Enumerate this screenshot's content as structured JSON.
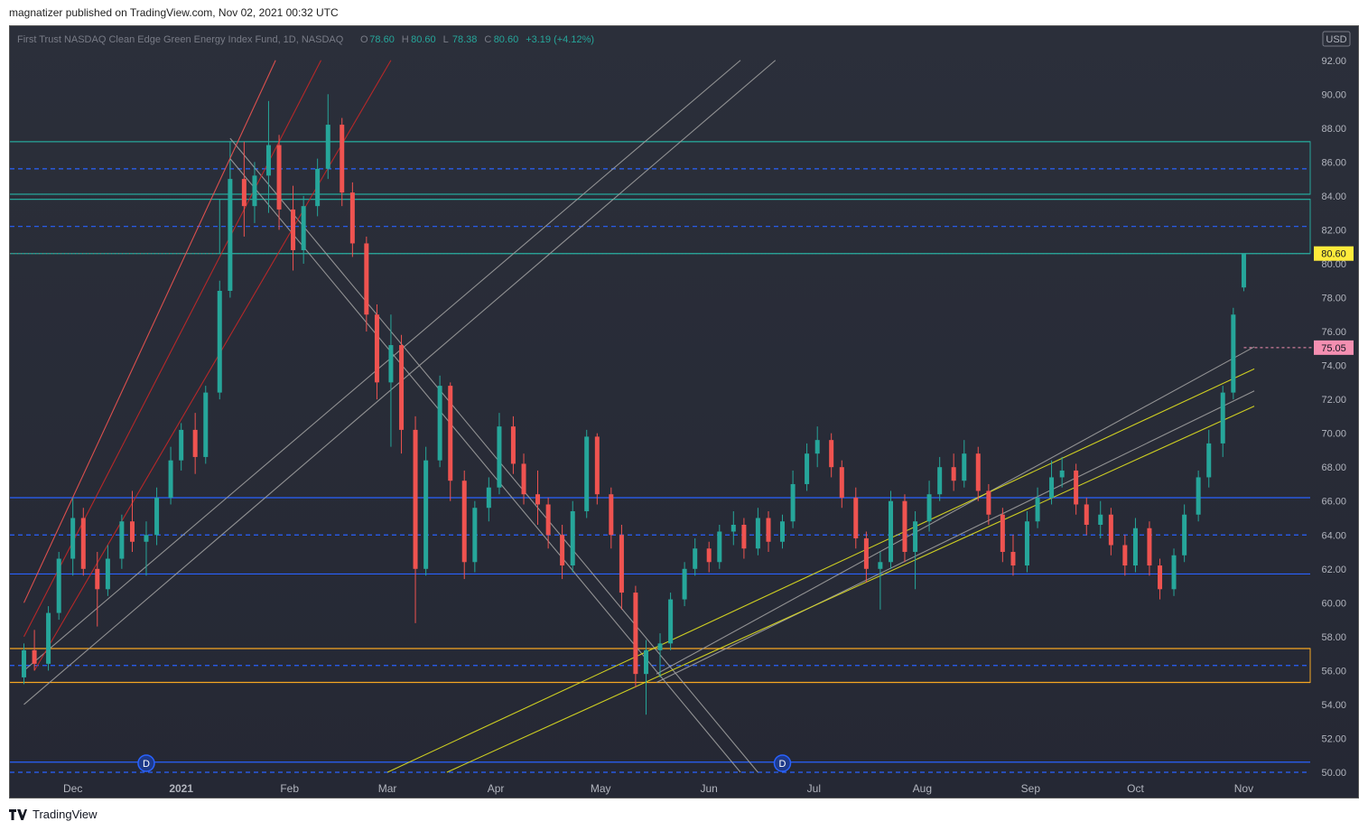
{
  "header": {
    "publisher": "magnatizer",
    "published_text": "magnatizer published on TradingView.com, Nov 02, 2021 00:32 UTC"
  },
  "footer": {
    "brand": "TradingView",
    "logo_icon": "tradingview-logo-icon"
  },
  "chart_data": {
    "type": "candlestick",
    "symbol_title": "First Trust NASDAQ Clean Edge Green Energy Index Fund, 1D, NASDAQ",
    "ohlc": {
      "open_prefix": "O",
      "open": "78.60",
      "high_prefix": "H",
      "high": "80.60",
      "low_prefix": "L",
      "low": "78.38",
      "close_prefix": "C",
      "close": "80.60",
      "change": "+3.19 (+4.12%)"
    },
    "currency": "USD",
    "y_axis": {
      "min": 50,
      "max": 93,
      "ticks": [
        "50.00",
        "52.00",
        "54.00",
        "56.00",
        "58.00",
        "60.00",
        "62.00",
        "64.00",
        "66.00",
        "68.00",
        "70.00",
        "72.00",
        "74.00",
        "76.00",
        "78.00",
        "80.00",
        "82.00",
        "84.00",
        "86.00",
        "88.00",
        "90.00",
        "92.00"
      ]
    },
    "x_axis": {
      "labels": [
        {
          "label": "Dec",
          "date": "2020-12-01"
        },
        {
          "label": "2021",
          "date": "2021-01-01"
        },
        {
          "label": "Feb",
          "date": "2021-02-01"
        },
        {
          "label": "Mar",
          "date": "2021-03-01"
        },
        {
          "label": "Apr",
          "date": "2021-04-01"
        },
        {
          "label": "May",
          "date": "2021-05-01"
        },
        {
          "label": "Jun",
          "date": "2021-06-01"
        },
        {
          "label": "Jul",
          "date": "2021-07-01"
        },
        {
          "label": "Aug",
          "date": "2021-08-01"
        },
        {
          "label": "Sep",
          "date": "2021-09-01"
        },
        {
          "label": "Oct",
          "date": "2021-10-01"
        },
        {
          "label": "Nov",
          "date": "2021-11-01"
        }
      ]
    },
    "price_labels": {
      "last": "80.60",
      "marker": "75.05"
    },
    "dividend_markers": [
      {
        "label": "D",
        "date": "2020-12-22"
      },
      {
        "label": "D",
        "date": "2021-06-22"
      }
    ],
    "horizontal_levels": [
      {
        "price": 87.2,
        "style": "solid",
        "color": "#26a69a"
      },
      {
        "price": 85.6,
        "style": "dashed",
        "color": "#2962ff"
      },
      {
        "price": 84.1,
        "style": "solid",
        "color": "#26a69a"
      },
      {
        "price": 83.8,
        "style": "solid",
        "color": "#26a69a"
      },
      {
        "price": 82.2,
        "style": "dashed",
        "color": "#2962ff"
      },
      {
        "price": 80.6,
        "style": "solid",
        "color": "#26a69a"
      },
      {
        "price": 66.2,
        "style": "solid",
        "color": "#2962ff"
      },
      {
        "price": 64.0,
        "style": "dashed",
        "color": "#2962ff"
      },
      {
        "price": 61.7,
        "style": "solid",
        "color": "#2962ff"
      },
      {
        "price": 57.3,
        "style": "solid",
        "color": "#f5a623"
      },
      {
        "price": 56.3,
        "style": "dashed",
        "color": "#2962ff"
      },
      {
        "price": 55.3,
        "style": "solid",
        "color": "#f5a623"
      },
      {
        "price": 50.6,
        "style": "solid",
        "color": "#2962ff"
      },
      {
        "price": 50.0,
        "style": "dashed",
        "color": "#2962ff"
      }
    ],
    "candles": [
      {
        "d": "2020-11-17",
        "o": 55.6,
        "h": 57.6,
        "l": 55.2,
        "c": 57.2
      },
      {
        "d": "2020-11-20",
        "o": 57.2,
        "h": 58.4,
        "l": 56.0,
        "c": 56.4
      },
      {
        "d": "2020-11-24",
        "o": 56.4,
        "h": 59.8,
        "l": 56.0,
        "c": 59.4
      },
      {
        "d": "2020-11-27",
        "o": 59.4,
        "h": 63.0,
        "l": 59.0,
        "c": 62.6
      },
      {
        "d": "2020-12-01",
        "o": 62.6,
        "h": 66.2,
        "l": 61.6,
        "c": 65.0
      },
      {
        "d": "2020-12-04",
        "o": 65.0,
        "h": 65.6,
        "l": 61.6,
        "c": 62.0
      },
      {
        "d": "2020-12-08",
        "o": 62.0,
        "h": 63.0,
        "l": 58.6,
        "c": 60.8
      },
      {
        "d": "2020-12-11",
        "o": 60.8,
        "h": 63.4,
        "l": 60.4,
        "c": 62.6
      },
      {
        "d": "2020-12-15",
        "o": 62.6,
        "h": 65.2,
        "l": 62.0,
        "c": 64.8
      },
      {
        "d": "2020-12-18",
        "o": 64.8,
        "h": 66.6,
        "l": 63.0,
        "c": 63.6
      },
      {
        "d": "2020-12-22",
        "o": 63.6,
        "h": 64.8,
        "l": 61.6,
        "c": 64.0
      },
      {
        "d": "2020-12-25",
        "o": 64.0,
        "h": 66.8,
        "l": 63.4,
        "c": 66.2
      },
      {
        "d": "2020-12-29",
        "o": 66.2,
        "h": 69.2,
        "l": 65.8,
        "c": 68.4
      },
      {
        "d": "2021-01-01",
        "o": 68.4,
        "h": 70.6,
        "l": 67.8,
        "c": 70.2
      },
      {
        "d": "2021-01-05",
        "o": 70.2,
        "h": 71.2,
        "l": 67.6,
        "c": 68.6
      },
      {
        "d": "2021-01-08",
        "o": 68.6,
        "h": 72.8,
        "l": 68.2,
        "c": 72.4
      },
      {
        "d": "2021-01-12",
        "o": 72.4,
        "h": 79.0,
        "l": 72.0,
        "c": 78.4
      },
      {
        "d": "2021-01-15",
        "o": 78.4,
        "h": 86.0,
        "l": 78.0,
        "c": 85.0
      },
      {
        "d": "2021-01-19",
        "o": 85.0,
        "h": 87.2,
        "l": 81.6,
        "c": 83.4
      },
      {
        "d": "2021-01-22",
        "o": 83.4,
        "h": 86.0,
        "l": 82.4,
        "c": 85.2
      },
      {
        "d": "2021-01-26",
        "o": 85.2,
        "h": 89.6,
        "l": 83.0,
        "c": 87.0
      },
      {
        "d": "2021-01-29",
        "o": 87.0,
        "h": 87.6,
        "l": 82.0,
        "c": 83.2
      },
      {
        "d": "2021-02-02",
        "o": 83.2,
        "h": 84.6,
        "l": 79.6,
        "c": 80.8
      },
      {
        "d": "2021-02-05",
        "o": 80.8,
        "h": 84.0,
        "l": 80.0,
        "c": 83.4
      },
      {
        "d": "2021-02-09",
        "o": 83.4,
        "h": 86.2,
        "l": 82.8,
        "c": 85.6
      },
      {
        "d": "2021-02-12",
        "o": 85.6,
        "h": 90.0,
        "l": 85.0,
        "c": 88.2
      },
      {
        "d": "2021-02-16",
        "o": 88.2,
        "h": 88.6,
        "l": 83.4,
        "c": 84.2
      },
      {
        "d": "2021-02-19",
        "o": 84.2,
        "h": 84.8,
        "l": 80.4,
        "c": 81.2
      },
      {
        "d": "2021-02-23",
        "o": 81.2,
        "h": 81.6,
        "l": 76.0,
        "c": 77.0
      },
      {
        "d": "2021-02-26",
        "o": 77.0,
        "h": 77.6,
        "l": 72.0,
        "c": 73.0
      },
      {
        "d": "2021-03-02",
        "o": 73.0,
        "h": 77.0,
        "l": 69.2,
        "c": 75.2
      },
      {
        "d": "2021-03-05",
        "o": 75.2,
        "h": 75.8,
        "l": 68.8,
        "c": 70.2
      },
      {
        "d": "2021-03-09",
        "o": 70.2,
        "h": 71.0,
        "l": 58.8,
        "c": 62.0
      },
      {
        "d": "2021-03-12",
        "o": 62.0,
        "h": 69.2,
        "l": 61.6,
        "c": 68.4
      },
      {
        "d": "2021-03-16",
        "o": 68.4,
        "h": 73.4,
        "l": 68.0,
        "c": 72.8
      },
      {
        "d": "2021-03-19",
        "o": 72.8,
        "h": 73.0,
        "l": 66.0,
        "c": 67.2
      },
      {
        "d": "2021-03-23",
        "o": 67.2,
        "h": 67.8,
        "l": 61.4,
        "c": 62.4
      },
      {
        "d": "2021-03-26",
        "o": 62.4,
        "h": 66.0,
        "l": 61.8,
        "c": 65.6
      },
      {
        "d": "2021-03-30",
        "o": 65.6,
        "h": 67.4,
        "l": 64.8,
        "c": 66.8
      },
      {
        "d": "2021-04-02",
        "o": 66.8,
        "h": 71.2,
        "l": 66.4,
        "c": 70.4
      },
      {
        "d": "2021-04-06",
        "o": 70.4,
        "h": 71.0,
        "l": 67.6,
        "c": 68.2
      },
      {
        "d": "2021-04-09",
        "o": 68.2,
        "h": 68.8,
        "l": 65.8,
        "c": 66.4
      },
      {
        "d": "2021-04-13",
        "o": 66.4,
        "h": 67.8,
        "l": 64.6,
        "c": 65.8
      },
      {
        "d": "2021-04-16",
        "o": 65.8,
        "h": 66.2,
        "l": 63.2,
        "c": 64.0
      },
      {
        "d": "2021-04-20",
        "o": 64.0,
        "h": 64.6,
        "l": 61.4,
        "c": 62.2
      },
      {
        "d": "2021-04-23",
        "o": 62.2,
        "h": 66.0,
        "l": 61.8,
        "c": 65.4
      },
      {
        "d": "2021-04-27",
        "o": 65.4,
        "h": 70.2,
        "l": 65.0,
        "c": 69.8
      },
      {
        "d": "2021-04-30",
        "o": 69.8,
        "h": 70.0,
        "l": 65.8,
        "c": 66.4
      },
      {
        "d": "2021-05-04",
        "o": 66.4,
        "h": 66.8,
        "l": 63.2,
        "c": 64.0
      },
      {
        "d": "2021-05-07",
        "o": 64.0,
        "h": 64.6,
        "l": 59.6,
        "c": 60.6
      },
      {
        "d": "2021-05-11",
        "o": 60.6,
        "h": 61.0,
        "l": 55.0,
        "c": 55.8
      },
      {
        "d": "2021-05-14",
        "o": 55.8,
        "h": 57.8,
        "l": 53.4,
        "c": 57.2
      },
      {
        "d": "2021-05-18",
        "o": 57.2,
        "h": 58.2,
        "l": 55.6,
        "c": 57.6
      },
      {
        "d": "2021-05-21",
        "o": 57.6,
        "h": 60.6,
        "l": 57.2,
        "c": 60.2
      },
      {
        "d": "2021-05-25",
        "o": 60.2,
        "h": 62.4,
        "l": 59.8,
        "c": 62.0
      },
      {
        "d": "2021-05-28",
        "o": 62.0,
        "h": 63.8,
        "l": 61.6,
        "c": 63.2
      },
      {
        "d": "2021-06-01",
        "o": 63.2,
        "h": 63.6,
        "l": 61.8,
        "c": 62.4
      },
      {
        "d": "2021-06-04",
        "o": 62.4,
        "h": 64.6,
        "l": 62.0,
        "c": 64.2
      },
      {
        "d": "2021-06-08",
        "o": 64.2,
        "h": 65.4,
        "l": 63.4,
        "c": 64.6
      },
      {
        "d": "2021-06-11",
        "o": 64.6,
        "h": 65.0,
        "l": 62.6,
        "c": 63.2
      },
      {
        "d": "2021-06-15",
        "o": 63.2,
        "h": 65.6,
        "l": 62.8,
        "c": 65.0
      },
      {
        "d": "2021-06-18",
        "o": 65.0,
        "h": 65.4,
        "l": 63.0,
        "c": 63.6
      },
      {
        "d": "2021-06-22",
        "o": 63.6,
        "h": 65.2,
        "l": 63.2,
        "c": 64.8
      },
      {
        "d": "2021-06-25",
        "o": 64.8,
        "h": 67.8,
        "l": 64.4,
        "c": 67.0
      },
      {
        "d": "2021-06-29",
        "o": 67.0,
        "h": 69.4,
        "l": 66.6,
        "c": 68.8
      },
      {
        "d": "2021-07-02",
        "o": 68.8,
        "h": 70.4,
        "l": 68.0,
        "c": 69.6
      },
      {
        "d": "2021-07-06",
        "o": 69.6,
        "h": 70.0,
        "l": 67.4,
        "c": 68.0
      },
      {
        "d": "2021-07-09",
        "o": 68.0,
        "h": 68.4,
        "l": 65.6,
        "c": 66.2
      },
      {
        "d": "2021-07-13",
        "o": 66.2,
        "h": 66.8,
        "l": 63.2,
        "c": 63.8
      },
      {
        "d": "2021-07-16",
        "o": 63.8,
        "h": 64.2,
        "l": 61.2,
        "c": 62.0
      },
      {
        "d": "2021-07-20",
        "o": 62.0,
        "h": 63.0,
        "l": 59.6,
        "c": 62.4
      },
      {
        "d": "2021-07-23",
        "o": 62.4,
        "h": 66.6,
        "l": 62.0,
        "c": 66.0
      },
      {
        "d": "2021-07-27",
        "o": 66.0,
        "h": 66.4,
        "l": 62.4,
        "c": 63.0
      },
      {
        "d": "2021-07-30",
        "o": 63.0,
        "h": 65.4,
        "l": 60.8,
        "c": 64.8
      },
      {
        "d": "2021-08-03",
        "o": 64.8,
        "h": 67.2,
        "l": 64.2,
        "c": 66.4
      },
      {
        "d": "2021-08-06",
        "o": 66.4,
        "h": 68.6,
        "l": 66.0,
        "c": 68.0
      },
      {
        "d": "2021-08-10",
        "o": 68.0,
        "h": 68.8,
        "l": 66.6,
        "c": 67.2
      },
      {
        "d": "2021-08-13",
        "o": 67.2,
        "h": 69.6,
        "l": 66.8,
        "c": 68.8
      },
      {
        "d": "2021-08-17",
        "o": 68.8,
        "h": 69.2,
        "l": 66.0,
        "c": 66.6
      },
      {
        "d": "2021-08-20",
        "o": 66.6,
        "h": 67.0,
        "l": 64.6,
        "c": 65.2
      },
      {
        "d": "2021-08-24",
        "o": 65.2,
        "h": 65.6,
        "l": 62.4,
        "c": 63.0
      },
      {
        "d": "2021-08-27",
        "o": 63.0,
        "h": 64.0,
        "l": 61.6,
        "c": 62.2
      },
      {
        "d": "2021-08-31",
        "o": 62.2,
        "h": 65.4,
        "l": 61.8,
        "c": 64.8
      },
      {
        "d": "2021-09-03",
        "o": 64.8,
        "h": 66.8,
        "l": 64.4,
        "c": 66.2
      },
      {
        "d": "2021-09-07",
        "o": 66.2,
        "h": 68.4,
        "l": 65.8,
        "c": 67.4
      },
      {
        "d": "2021-09-10",
        "o": 67.4,
        "h": 68.6,
        "l": 66.8,
        "c": 67.8
      },
      {
        "d": "2021-09-14",
        "o": 67.8,
        "h": 68.2,
        "l": 65.2,
        "c": 65.8
      },
      {
        "d": "2021-09-17",
        "o": 65.8,
        "h": 66.2,
        "l": 64.0,
        "c": 64.6
      },
      {
        "d": "2021-09-21",
        "o": 64.6,
        "h": 66.0,
        "l": 63.8,
        "c": 65.2
      },
      {
        "d": "2021-09-24",
        "o": 65.2,
        "h": 65.6,
        "l": 62.8,
        "c": 63.4
      },
      {
        "d": "2021-09-28",
        "o": 63.4,
        "h": 64.0,
        "l": 61.6,
        "c": 62.2
      },
      {
        "d": "2021-10-01",
        "o": 62.2,
        "h": 65.0,
        "l": 61.8,
        "c": 64.4
      },
      {
        "d": "2021-10-05",
        "o": 64.4,
        "h": 64.8,
        "l": 61.6,
        "c": 62.2
      },
      {
        "d": "2021-10-08",
        "o": 62.2,
        "h": 62.6,
        "l": 60.2,
        "c": 60.8
      },
      {
        "d": "2021-10-12",
        "o": 60.8,
        "h": 63.2,
        "l": 60.4,
        "c": 62.8
      },
      {
        "d": "2021-10-15",
        "o": 62.8,
        "h": 65.8,
        "l": 62.4,
        "c": 65.2
      },
      {
        "d": "2021-10-19",
        "o": 65.2,
        "h": 67.8,
        "l": 64.8,
        "c": 67.4
      },
      {
        "d": "2021-10-22",
        "o": 67.4,
        "h": 70.2,
        "l": 66.8,
        "c": 69.4
      },
      {
        "d": "2021-10-26",
        "o": 69.4,
        "h": 72.8,
        "l": 68.6,
        "c": 72.4
      },
      {
        "d": "2021-10-29",
        "o": 72.4,
        "h": 77.4,
        "l": 72.0,
        "c": 77.0
      },
      {
        "d": "2021-11-01",
        "o": 78.6,
        "h": 80.6,
        "l": 78.38,
        "c": 80.6
      }
    ],
    "trendlines": [
      {
        "color": "#9e9e9e",
        "p1": [
          "2021-01-15",
          87.4
        ],
        "p2": [
          "2021-06-15",
          50.0
        ]
      },
      {
        "color": "#9e9e9e",
        "p1": [
          "2021-01-15",
          86.2
        ],
        "p2": [
          "2021-06-10",
          50.0
        ]
      },
      {
        "color": "#9e9e9e",
        "p1": [
          "2020-11-17",
          54.0
        ],
        "p2": [
          "2021-06-20",
          92.0
        ]
      },
      {
        "color": "#9e9e9e",
        "p1": [
          "2020-11-17",
          56.0
        ],
        "p2": [
          "2021-06-10",
          92.0
        ]
      },
      {
        "color": "#9e9e9e",
        "p1": [
          "2021-05-17",
          55.8
        ],
        "p2": [
          "2021-11-04",
          75.1
        ]
      },
      {
        "color": "#9e9e9e",
        "p1": [
          "2021-05-17",
          55.3
        ],
        "p2": [
          "2021-11-04",
          72.5
        ]
      },
      {
        "color": "#e0e020",
        "p1": [
          "2021-03-01",
          50.0
        ],
        "p2": [
          "2021-11-04",
          73.8
        ]
      },
      {
        "color": "#e0e020",
        "p1": [
          "2021-03-18",
          50.0
        ],
        "p2": [
          "2021-11-04",
          71.6
        ]
      },
      {
        "color": "#ef5350",
        "p1": [
          "2020-11-17",
          60.0
        ],
        "p2": [
          "2021-01-28",
          92.0
        ]
      },
      {
        "color": "#c62828",
        "p1": [
          "2020-11-17",
          58.0
        ],
        "p2": [
          "2021-02-10",
          92.0
        ]
      },
      {
        "color": "#c62828",
        "p1": [
          "2020-11-20",
          56.0
        ],
        "p2": [
          "2021-03-02",
          92.0
        ]
      }
    ]
  }
}
